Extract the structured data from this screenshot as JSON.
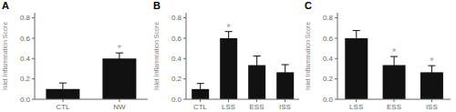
{
  "chart_data": [
    {
      "type": "bar",
      "title": "A",
      "categories": [
        "CTL",
        "NW"
      ],
      "values": [
        0.1,
        0.4
      ],
      "errors": [
        0.06,
        0.055
      ],
      "color": "#111111",
      "ylim": [
        0,
        0.85
      ],
      "yticks": [
        {
          "value": 0.0,
          "label": "0.0"
        },
        0.2,
        0.4,
        0.6,
        0.8
      ],
      "ylabel": "Islet Inflammation Score",
      "annotations": [
        {
          "category": "NW",
          "text": "*",
          "color": "#999999"
        }
      ]
    },
    {
      "type": "bar",
      "title": "B",
      "categories": [
        "CTL",
        "LSS",
        "ESS",
        "ISS"
      ],
      "values": [
        0.1,
        0.6,
        0.335,
        0.265
      ],
      "errors": [
        0.055,
        0.065,
        0.09,
        0.075
      ],
      "color": "#111111",
      "ylim": [
        0,
        0.85
      ],
      "yticks": [
        {
          "value": 0.0,
          "label": "0.0"
        },
        0.2,
        0.4,
        0.6,
        0.8
      ],
      "ylabel": "Islet Inflammation Score",
      "annotations": [
        {
          "category": "LSS",
          "text": "*",
          "color": "#999999"
        }
      ]
    },
    {
      "type": "bar",
      "title": "C",
      "categories": [
        "LSS",
        "ESS",
        "ISS"
      ],
      "values": [
        0.6,
        0.335,
        0.265
      ],
      "errors": [
        0.075,
        0.085,
        0.065
      ],
      "color": "#111111",
      "ylim": [
        0,
        0.85
      ],
      "yticks": [
        {
          "value": 0.0,
          "label": "0.0"
        },
        0.2,
        0.4,
        0.6,
        0.8
      ],
      "ylabel": "Islet Inflammation Score",
      "annotations": [
        {
          "category": "ESS",
          "text": "*",
          "color": "#999999"
        },
        {
          "category": "ISS",
          "text": "*",
          "color": "#999999"
        }
      ]
    }
  ]
}
